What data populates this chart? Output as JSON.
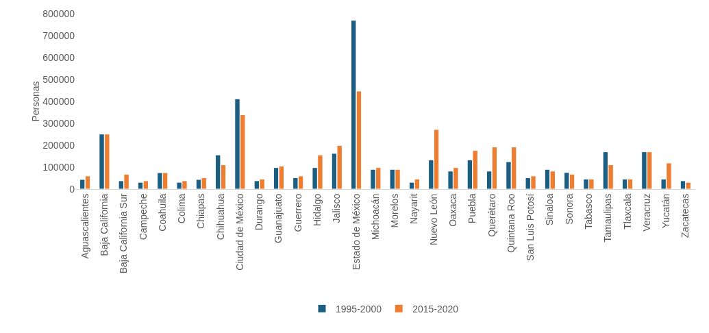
{
  "chart_data": {
    "type": "bar",
    "ylabel": "Personas",
    "categories": [
      "Aguascalientes",
      "Baja California",
      "Baja California Sur",
      "Campeche",
      "Coahuila",
      "Colima",
      "Chiapas",
      "Chihuahua",
      "Ciudad de México",
      "Durango",
      "Guanajuato",
      "Guerrero",
      "Hidalgo",
      "Jalisco",
      "Estado de México",
      "Michoacán",
      "Morelos",
      "Nayarit",
      "Nuevo León",
      "Oaxaca",
      "Puebla",
      "Querétaro",
      "Quintana Roo",
      "San Luis Potosí",
      "Sinaloa",
      "Sonora",
      "Tabasco",
      "Tamaulipas",
      "Tlaxcala",
      "Veracruz",
      "Yucatán",
      "Zacatecas"
    ],
    "series": [
      {
        "name": "1995-2000",
        "color": "#1b5e82",
        "values": [
          44000,
          251000,
          38000,
          31000,
          75000,
          31000,
          44000,
          156000,
          412000,
          38000,
          98000,
          52000,
          98000,
          163000,
          770000,
          90000,
          90000,
          31000,
          133000,
          82000,
          133000,
          82000,
          125000,
          52000,
          90000,
          76000,
          46000,
          170000,
          46000,
          170000,
          46000,
          38000
        ]
      },
      {
        "name": "2015-2020",
        "color": "#ed7d31",
        "values": [
          60000,
          251000,
          68000,
          38000,
          75000,
          38000,
          52000,
          111000,
          339000,
          46000,
          105000,
          60000,
          156000,
          199000,
          447000,
          98000,
          90000,
          46000,
          272000,
          98000,
          176000,
          192000,
          192000,
          60000,
          82000,
          68000,
          46000,
          111000,
          46000,
          170000,
          119000,
          31000
        ]
      }
    ],
    "ylim": [
      0,
      800000
    ],
    "yticks": [
      0,
      100000,
      200000,
      300000,
      400000,
      500000,
      600000,
      700000,
      800000
    ],
    "grid": false,
    "legend": "bottom"
  }
}
